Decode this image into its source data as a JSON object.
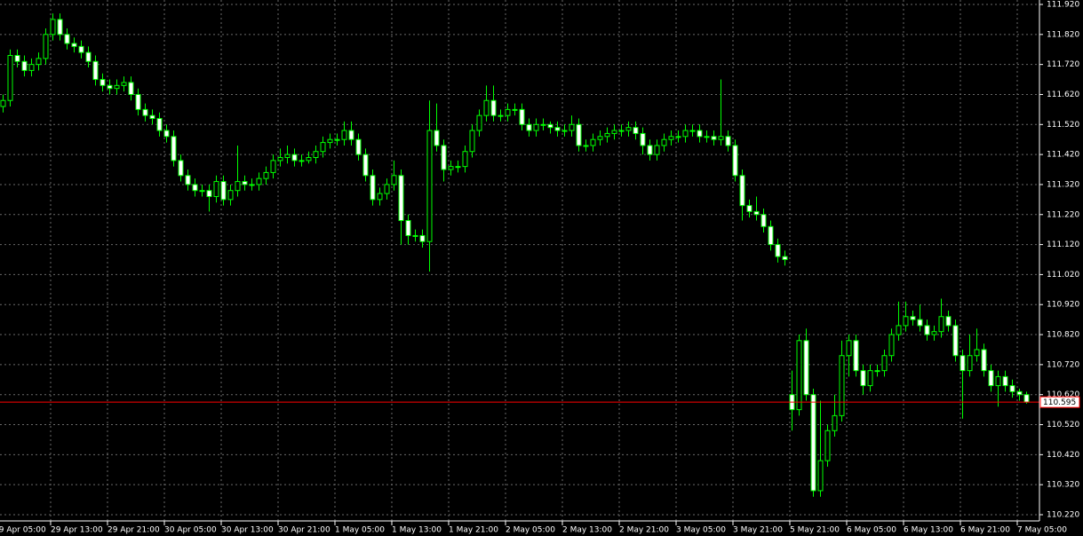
{
  "chart_data": {
    "type": "candlestick",
    "categories": [
      "29 Apr 05:00",
      null,
      null,
      null,
      null,
      null,
      null,
      null,
      "29 Apr 13:00",
      null,
      null,
      null,
      null,
      null,
      null,
      null,
      "29 Apr 21:00",
      null,
      null,
      null,
      null,
      null,
      null,
      null,
      "30 Apr 05:00",
      null,
      null,
      null,
      null,
      null,
      null,
      null,
      "30 Apr 13:00",
      null,
      null,
      null,
      null,
      null,
      null,
      null,
      "30 Apr 21:00",
      null,
      null,
      null,
      null,
      null,
      null,
      null,
      "1 May 05:00",
      null,
      null,
      null,
      null,
      null,
      null,
      null,
      "1 May 13:00",
      null,
      null,
      null,
      null,
      null,
      null,
      null,
      "1 May 21:00",
      null,
      null,
      null,
      null,
      null,
      null,
      null,
      "2 May 05:00",
      null,
      null,
      null,
      null,
      null,
      null,
      null,
      "2 May 13:00",
      null,
      null,
      null,
      null,
      null,
      null,
      null,
      "2 May 21:00",
      null,
      null,
      null,
      null,
      null,
      null,
      null,
      "3 May 05:00",
      null,
      null,
      null,
      null,
      null,
      null,
      null,
      "3 May 21:00",
      null,
      null,
      null,
      null,
      null,
      null,
      null,
      "5 May 21:00",
      null,
      null,
      null,
      null,
      null,
      null,
      null,
      "6 May 05:00",
      null,
      null,
      null,
      null,
      null,
      null,
      null,
      "6 May 13:00",
      null,
      null,
      null,
      null,
      null,
      null,
      null,
      "6 May 21:00",
      null,
      null,
      null,
      null,
      null,
      null,
      null,
      "7 May 05:00",
      null
    ],
    "open": [
      null,
      111.58,
      111.6,
      111.75,
      111.73,
      111.7,
      111.72,
      111.74,
      111.82,
      111.87,
      111.82,
      111.79,
      111.78,
      111.76,
      111.73,
      111.67,
      111.65,
      111.64,
      111.65,
      111.66,
      111.62,
      111.57,
      111.55,
      111.54,
      111.5,
      111.48,
      111.4,
      111.35,
      111.32,
      111.3,
      111.3,
      111.28,
      111.33,
      111.27,
      111.3,
      111.33,
      111.32,
      111.32,
      111.34,
      111.36,
      111.4,
      111.41,
      111.42,
      111.4,
      111.4,
      111.41,
      111.43,
      111.46,
      111.47,
      111.47,
      111.5,
      111.47,
      111.42,
      111.35,
      111.27,
      111.29,
      111.32,
      111.35,
      111.2,
      111.15,
      111.15,
      111.13,
      111.5,
      111.45,
      111.37,
      111.38,
      111.38,
      111.43,
      111.5,
      111.55,
      111.6,
      111.55,
      111.55,
      111.57,
      111.57,
      111.52,
      111.5,
      111.52,
      111.52,
      111.51,
      111.5,
      111.5,
      111.52,
      111.45,
      111.45,
      111.47,
      111.48,
      111.49,
      111.5,
      111.5,
      111.51,
      111.49,
      111.45,
      111.42,
      111.45,
      111.47,
      111.48,
      111.48,
      111.5,
      111.5,
      111.48,
      111.48,
      111.47,
      111.48,
      111.45,
      111.35,
      111.25,
      111.23,
      111.22,
      111.18,
      111.12,
      111.08,
      110.62,
      110.57,
      110.8,
      110.62,
      110.3,
      110.4,
      110.5,
      110.55,
      110.75,
      110.8,
      110.7,
      110.65,
      110.7,
      110.7,
      110.75,
      110.82,
      110.85,
      110.88,
      110.87,
      110.85,
      110.82,
      110.83,
      110.88,
      110.85,
      110.75,
      110.7,
      110.75,
      110.77,
      110.7,
      110.65,
      110.68,
      110.65,
      110.63,
      110.62
    ],
    "high": [
      null,
      111.62,
      111.77,
      111.77,
      111.75,
      111.74,
      111.76,
      111.84,
      111.89,
      111.89,
      111.84,
      111.81,
      111.8,
      111.78,
      111.75,
      111.69,
      111.67,
      111.67,
      111.68,
      111.68,
      111.64,
      111.59,
      111.57,
      111.56,
      111.52,
      111.5,
      111.42,
      111.37,
      111.34,
      111.32,
      111.32,
      111.35,
      111.35,
      111.32,
      111.45,
      111.35,
      111.34,
      111.36,
      111.38,
      111.42,
      111.44,
      111.45,
      111.44,
      111.42,
      111.43,
      111.45,
      111.48,
      111.49,
      111.49,
      111.53,
      111.53,
      111.49,
      111.44,
      111.37,
      111.31,
      111.34,
      111.4,
      111.37,
      111.22,
      111.17,
      111.17,
      111.6,
      111.59,
      111.47,
      111.4,
      111.4,
      111.45,
      111.52,
      111.57,
      111.65,
      111.65,
      111.57,
      111.59,
      111.59,
      111.59,
      111.54,
      111.54,
      111.54,
      111.53,
      111.53,
      111.52,
      111.55,
      111.54,
      111.47,
      111.49,
      111.5,
      111.51,
      111.52,
      111.52,
      111.53,
      111.53,
      111.51,
      111.47,
      111.47,
      111.49,
      111.5,
      111.5,
      111.52,
      111.52,
      111.52,
      111.5,
      111.5,
      111.67,
      111.5,
      111.47,
      111.37,
      111.27,
      111.28,
      111.24,
      111.2,
      111.14,
      111.1,
      110.7,
      110.82,
      110.84,
      110.64,
      110.6,
      110.52,
      110.62,
      110.8,
      110.82,
      110.82,
      110.72,
      110.72,
      110.72,
      110.77,
      110.84,
      110.93,
      110.93,
      110.9,
      110.92,
      110.87,
      110.85,
      110.94,
      110.9,
      110.87,
      110.77,
      110.82,
      110.84,
      110.79,
      110.72,
      110.7,
      110.7,
      110.67,
      110.64,
      110.63
    ],
    "low": [
      null,
      111.56,
      111.58,
      111.71,
      111.68,
      111.68,
      111.7,
      111.72,
      111.8,
      111.8,
      111.77,
      111.76,
      111.74,
      111.71,
      111.65,
      111.63,
      111.62,
      111.62,
      111.63,
      111.6,
      111.55,
      111.53,
      111.52,
      111.48,
      111.46,
      111.38,
      111.33,
      111.3,
      111.28,
      111.28,
      111.23,
      111.26,
      111.25,
      111.25,
      111.28,
      111.3,
      111.3,
      111.3,
      111.32,
      111.34,
      111.38,
      111.39,
      111.38,
      111.38,
      111.39,
      111.39,
      111.41,
      111.44,
      111.45,
      111.45,
      111.45,
      111.4,
      111.33,
      111.25,
      111.25,
      111.27,
      111.3,
      111.12,
      111.12,
      111.13,
      111.11,
      111.03,
      111.43,
      111.33,
      111.35,
      111.36,
      111.36,
      111.41,
      111.48,
      111.53,
      111.53,
      111.53,
      111.53,
      111.55,
      111.5,
      111.48,
      111.48,
      111.5,
      111.49,
      111.48,
      111.48,
      111.48,
      111.43,
      111.43,
      111.43,
      111.45,
      111.46,
      111.47,
      111.48,
      111.48,
      111.47,
      111.42,
      111.4,
      111.4,
      111.43,
      111.45,
      111.46,
      111.46,
      111.48,
      111.46,
      111.46,
      111.45,
      111.45,
      111.43,
      111.33,
      111.2,
      111.21,
      111.2,
      111.16,
      111.1,
      111.06,
      111.05,
      110.5,
      110.55,
      110.6,
      110.28,
      110.28,
      110.38,
      110.48,
      110.53,
      110.68,
      110.68,
      110.62,
      110.63,
      110.68,
      110.68,
      110.73,
      110.8,
      110.83,
      110.85,
      110.83,
      110.8,
      110.8,
      110.81,
      110.83,
      110.73,
      110.54,
      110.68,
      110.73,
      110.68,
      110.63,
      110.58,
      110.63,
      110.61,
      110.6,
      110.59
    ],
    "close": [
      null,
      111.6,
      111.75,
      111.73,
      111.7,
      111.72,
      111.74,
      111.82,
      111.87,
      111.82,
      111.79,
      111.78,
      111.76,
      111.73,
      111.67,
      111.65,
      111.64,
      111.65,
      111.66,
      111.62,
      111.57,
      111.55,
      111.54,
      111.5,
      111.48,
      111.4,
      111.35,
      111.32,
      111.3,
      111.3,
      111.28,
      111.33,
      111.27,
      111.3,
      111.33,
      111.32,
      111.32,
      111.34,
      111.36,
      111.4,
      111.41,
      111.42,
      111.4,
      111.4,
      111.41,
      111.43,
      111.46,
      111.47,
      111.47,
      111.5,
      111.47,
      111.42,
      111.35,
      111.27,
      111.29,
      111.32,
      111.35,
      111.2,
      111.15,
      111.15,
      111.13,
      111.5,
      111.45,
      111.37,
      111.38,
      111.38,
      111.43,
      111.5,
      111.55,
      111.6,
      111.55,
      111.55,
      111.57,
      111.57,
      111.52,
      111.5,
      111.52,
      111.52,
      111.51,
      111.5,
      111.5,
      111.52,
      111.45,
      111.45,
      111.47,
      111.48,
      111.49,
      111.5,
      111.5,
      111.51,
      111.49,
      111.45,
      111.42,
      111.45,
      111.47,
      111.48,
      111.48,
      111.5,
      111.5,
      111.48,
      111.48,
      111.47,
      111.48,
      111.45,
      111.35,
      111.25,
      111.23,
      111.22,
      111.18,
      111.12,
      111.08,
      111.07,
      110.57,
      110.8,
      110.62,
      110.3,
      110.4,
      110.5,
      110.55,
      110.75,
      110.8,
      110.7,
      110.65,
      110.7,
      110.7,
      110.75,
      110.82,
      110.85,
      110.88,
      110.87,
      110.85,
      110.82,
      110.83,
      110.88,
      110.85,
      110.75,
      110.7,
      110.75,
      110.77,
      110.7,
      110.65,
      110.68,
      110.65,
      110.63,
      110.62,
      110.595
    ],
    "up_color": "#000000",
    "down_color": "#ffffff",
    "wick_color": "#00ff00",
    "last_price": 110.595,
    "last_price_color": "#ff0000",
    "ylim": [
      110.22,
      111.92
    ],
    "yticks": [
      {
        "value": 111.92,
        "label": "111.920"
      },
      {
        "value": 111.82,
        "label": "111.820"
      },
      {
        "value": 111.72,
        "label": "111.720"
      },
      {
        "value": 111.62,
        "label": "111.620"
      },
      {
        "value": 111.52,
        "label": "111.520"
      },
      {
        "value": 111.42,
        "label": "111.420"
      },
      {
        "value": 111.32,
        "label": "111.320"
      },
      {
        "value": 111.22,
        "label": "111.220"
      },
      {
        "value": 111.12,
        "label": "111.120"
      },
      {
        "value": 111.02,
        "label": "111.020"
      },
      {
        "value": 110.92,
        "label": "110.920"
      },
      {
        "value": 110.82,
        "label": "110.820"
      },
      {
        "value": 110.72,
        "label": "110.720"
      },
      {
        "value": 110.62,
        "label": "110.620"
      },
      {
        "value": 110.52,
        "label": "110.520"
      },
      {
        "value": 110.42,
        "label": "110.420"
      },
      {
        "value": 110.32,
        "label": "110.320"
      },
      {
        "value": 110.22,
        "label": "110.220"
      }
    ],
    "grid": true
  }
}
